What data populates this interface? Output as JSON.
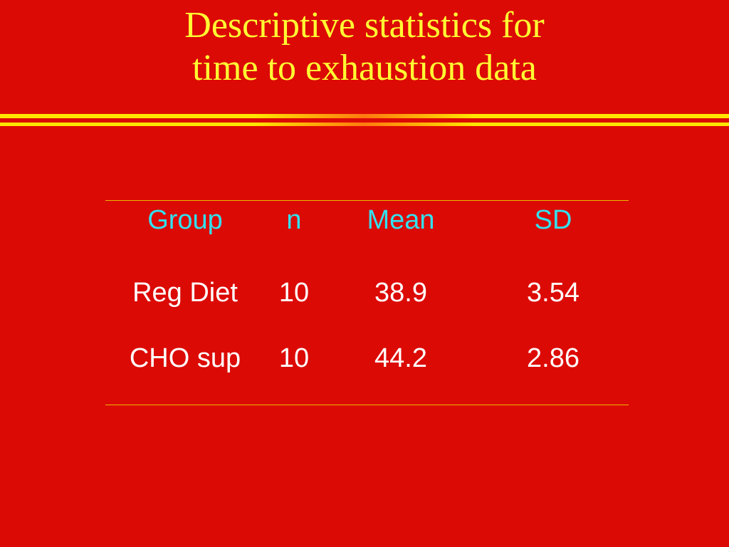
{
  "slide": {
    "title_line1": "Descriptive statistics for",
    "title_line2": "time to exhaustion data"
  },
  "table": {
    "headers": [
      "Group",
      "n",
      "Mean",
      "SD"
    ],
    "rows": [
      [
        "Reg Diet",
        "10",
        "38.9",
        "3.54"
      ],
      [
        "CHO sup",
        "10",
        "44.2",
        "2.86"
      ]
    ]
  },
  "colors": {
    "background": "#dc0a05",
    "title": "#ffff33",
    "header_text": "#33e0f0",
    "body_text": "#ffffff",
    "rule": "#ffe600"
  }
}
